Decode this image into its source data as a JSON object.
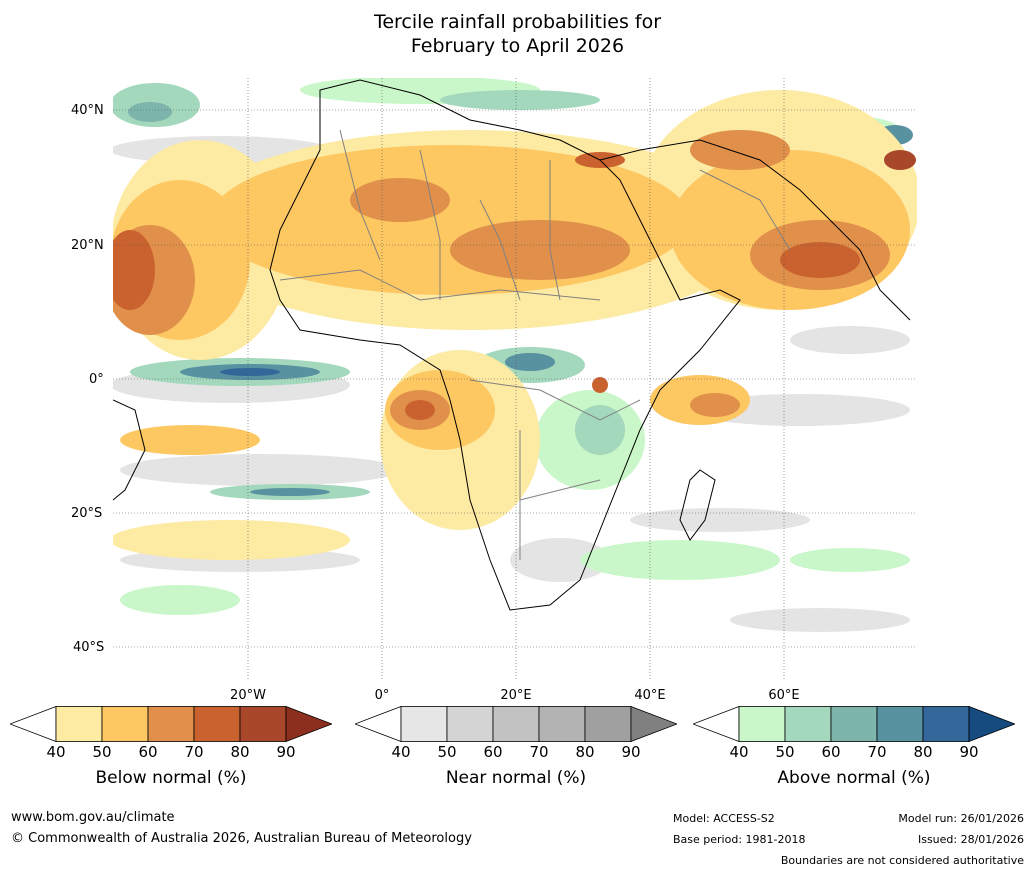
{
  "title": {
    "line1": "Tercile rainfall probabilities for",
    "line2": "February to April 2026"
  },
  "map": {
    "lat_labels": [
      "40°N",
      "20°N",
      "0°",
      "20°S",
      "40°S"
    ],
    "lon_labels": [
      "20°W",
      "0°",
      "20°E",
      "40°E",
      "60°E"
    ]
  },
  "colorbars": [
    {
      "label": "Below normal (%)",
      "ticks": [
        "40",
        "50",
        "60",
        "70",
        "80",
        "90"
      ],
      "colors": [
        "#ffffff",
        "#fdeaa3",
        "#fdc762",
        "#e0904a",
        "#c9622f",
        "#a8472a",
        "#8c2f1f"
      ]
    },
    {
      "label": "Near normal (%)",
      "ticks": [
        "40",
        "50",
        "60",
        "70",
        "80",
        "90"
      ],
      "colors": [
        "#ffffff",
        "#e6e6e6",
        "#d4d4d4",
        "#c2c2c2",
        "#b3b3b3",
        "#a0a0a0",
        "#808080"
      ]
    },
    {
      "label": "Above normal (%)",
      "ticks": [
        "40",
        "50",
        "60",
        "70",
        "80",
        "90"
      ],
      "colors": [
        "#ffffff",
        "#c9f7c9",
        "#a4d8bd",
        "#7db5ac",
        "#5891a0",
        "#33679a",
        "#164b80"
      ]
    }
  ],
  "footer": {
    "website": "www.bom.gov.au/climate",
    "copyright": "© Commonwealth of Australia 2026, Australian Bureau of Meteorology",
    "model": "Model: ACCESS-S2",
    "base_period": "Base period: 1981-2018",
    "model_run": "Model run: 26/01/2026",
    "issued": "Issued: 28/01/2026",
    "disclaimer": "Boundaries are not considered authoritative"
  }
}
